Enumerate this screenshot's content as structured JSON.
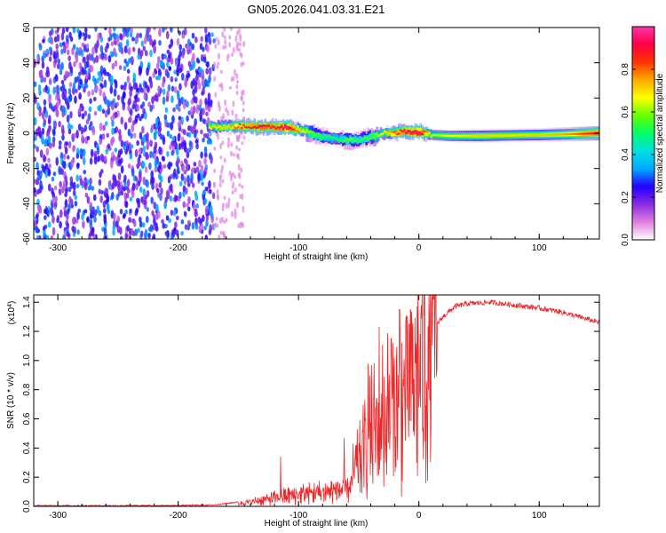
{
  "title": "GN05.2026.041.03.31.E21",
  "chart_data": [
    {
      "type": "heatmap",
      "name": "spectrogram",
      "xlabel": "Height of straight line (km)",
      "ylabel": "Frequency (Hz)",
      "xlim": [
        -320,
        150
      ],
      "ylim": [
        -60,
        60
      ],
      "xticks": [
        -300,
        -200,
        -100,
        0,
        100
      ],
      "yticks": [
        -60,
        -40,
        -20,
        0,
        20,
        40,
        60
      ],
      "colorbar": {
        "label": "Normalized spectral amplitude",
        "range": [
          0,
          1
        ],
        "ticks": [
          0.0,
          0.2,
          0.4,
          0.6,
          0.8
        ],
        "colors": [
          "#ffffff",
          "#e07fe0",
          "#8a2be2",
          "#2200ff",
          "#00aaff",
          "#00e0e0",
          "#00ff66",
          "#66ff00",
          "#ffff00",
          "#ffaa00",
          "#ff3300",
          "#ff0044",
          "#ff33aa"
        ]
      },
      "noise_region_x": [
        -320,
        -170
      ],
      "sparse_region_x": [
        -170,
        -145
      ],
      "signal_track": [
        {
          "x": -175,
          "f": 3.5,
          "a": 0.55
        },
        {
          "x": -160,
          "f": 3.8,
          "a": 0.6
        },
        {
          "x": -150,
          "f": 4.0,
          "a": 0.7
        },
        {
          "x": -140,
          "f": 3.8,
          "a": 0.75
        },
        {
          "x": -130,
          "f": 3.5,
          "a": 0.8
        },
        {
          "x": -120,
          "f": 3.5,
          "a": 0.75
        },
        {
          "x": -110,
          "f": 3.5,
          "a": 0.85
        },
        {
          "x": -100,
          "f": 2.0,
          "a": 0.6
        },
        {
          "x": -90,
          "f": 0.0,
          "a": 0.45
        },
        {
          "x": -80,
          "f": -2.0,
          "a": 0.4
        },
        {
          "x": -70,
          "f": -3.0,
          "a": 0.35
        },
        {
          "x": -60,
          "f": -4.0,
          "a": 0.45
        },
        {
          "x": -50,
          "f": -3.5,
          "a": 0.4
        },
        {
          "x": -40,
          "f": -2.0,
          "a": 0.45
        },
        {
          "x": -30,
          "f": 0.0,
          "a": 0.55
        },
        {
          "x": -20,
          "f": 0.5,
          "a": 0.7
        },
        {
          "x": -10,
          "f": 1.0,
          "a": 0.8
        },
        {
          "x": 0,
          "f": 0.8,
          "a": 0.85
        },
        {
          "x": 10,
          "f": -1.0,
          "a": 0.5
        },
        {
          "x": 25,
          "f": -1.5,
          "a": 0.55
        },
        {
          "x": 50,
          "f": -1.5,
          "a": 0.6
        },
        {
          "x": 75,
          "f": -1.2,
          "a": 0.58
        },
        {
          "x": 100,
          "f": -1.0,
          "a": 0.6
        },
        {
          "x": 125,
          "f": -0.5,
          "a": 0.65
        },
        {
          "x": 150,
          "f": 0.0,
          "a": 0.8
        }
      ]
    },
    {
      "type": "line",
      "name": "snr",
      "xlabel": "Height of straight line (km)",
      "ylabel": "SNR (10 * v/v)",
      "multiplier": "(x10",
      "multiplier_exp": "4",
      "multiplier_close": ")",
      "xlim": [
        -320,
        150
      ],
      "ylim": [
        0,
        1.45
      ],
      "xticks": [
        -300,
        -200,
        -100,
        0,
        100
      ],
      "yticks": [
        0.0,
        0.2,
        0.4,
        0.6,
        0.8,
        1.0,
        1.2,
        1.4
      ],
      "color": "#e8282a",
      "envelope": [
        {
          "x": -320,
          "y": 0.005
        },
        {
          "x": -250,
          "y": 0.005
        },
        {
          "x": -200,
          "y": 0.006
        },
        {
          "x": -170,
          "y": 0.01
        },
        {
          "x": -150,
          "y": 0.03
        },
        {
          "x": -130,
          "y": 0.07
        },
        {
          "x": -110,
          "y": 0.12
        },
        {
          "x": -90,
          "y": 0.15
        },
        {
          "x": -70,
          "y": 0.18
        },
        {
          "x": -60,
          "y": 0.2
        },
        {
          "x": -50,
          "y": 0.35
        },
        {
          "x": -40,
          "y": 0.6
        },
        {
          "x": -30,
          "y": 0.75
        },
        {
          "x": -20,
          "y": 0.82
        },
        {
          "x": -10,
          "y": 0.95
        },
        {
          "x": 0,
          "y": 1.1
        },
        {
          "x": 10,
          "y": 1.2
        },
        {
          "x": 20,
          "y": 1.3
        },
        {
          "x": 30,
          "y": 1.37
        },
        {
          "x": 40,
          "y": 1.39
        },
        {
          "x": 60,
          "y": 1.4
        },
        {
          "x": 80,
          "y": 1.38
        },
        {
          "x": 100,
          "y": 1.36
        },
        {
          "x": 120,
          "y": 1.33
        },
        {
          "x": 150,
          "y": 1.26
        }
      ],
      "spikes": [
        {
          "x": -115,
          "y": 0.34
        },
        {
          "x": -62,
          "y": 0.47
        },
        {
          "x": -42,
          "y": 0.98
        },
        {
          "x": -33,
          "y": 1.23
        },
        {
          "x": -23,
          "y": 1.15
        },
        {
          "x": -16,
          "y": 1.35
        },
        {
          "x": -8,
          "y": 1.25
        },
        {
          "x": 2,
          "y": 1.38
        },
        {
          "x": 12,
          "y": 1.42
        }
      ]
    }
  ]
}
